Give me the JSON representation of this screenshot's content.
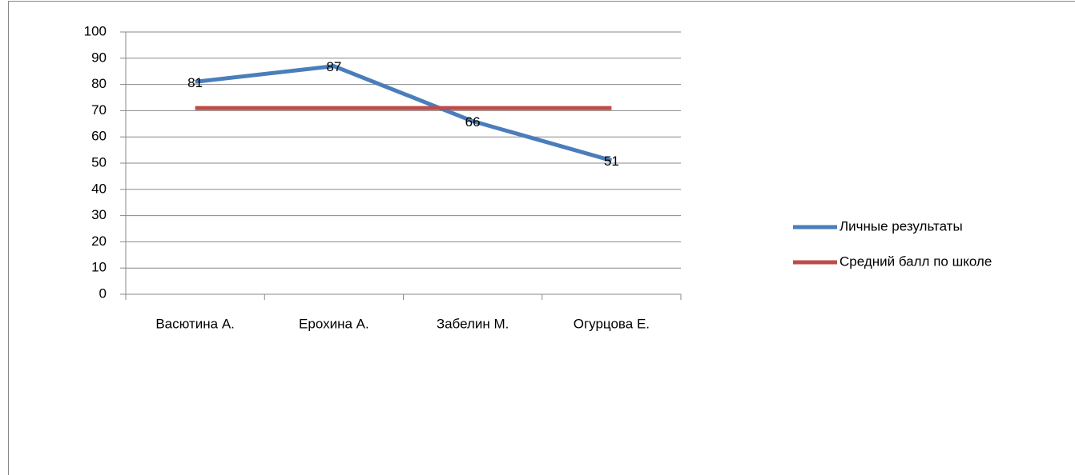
{
  "chart_data": {
    "type": "line",
    "categories": [
      "Васютина А.",
      "Ерохина А.",
      "Забелин М.",
      "Огурцова Е."
    ],
    "series": [
      {
        "name": "Личные результаты",
        "color": "#4a7ebb",
        "values": [
          81,
          87,
          66,
          51
        ],
        "data_labels": true
      },
      {
        "name": "Средний балл по школе",
        "color": "#be4b48",
        "values": [
          71,
          71,
          71,
          71
        ],
        "data_labels": false
      }
    ],
    "ylim": [
      0,
      100
    ],
    "yticks": [
      0,
      10,
      20,
      30,
      40,
      50,
      60,
      70,
      80,
      90,
      100
    ],
    "grid": true,
    "legend": "right"
  }
}
